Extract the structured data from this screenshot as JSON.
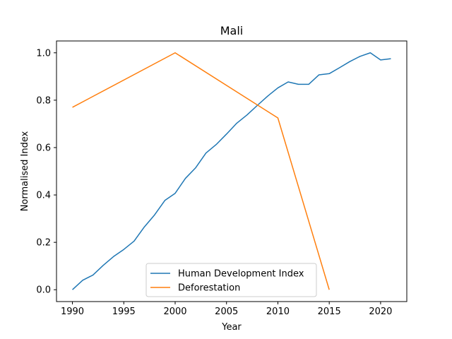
{
  "chart_data": {
    "type": "line",
    "title": "Mali",
    "xlabel": "Year",
    "ylabel": "Normalised Index",
    "xlim": [
      1988.45,
      2022.55
    ],
    "ylim": [
      -0.05,
      1.05
    ],
    "xticks": [
      1990,
      1995,
      2000,
      2005,
      2010,
      2015,
      2020
    ],
    "yticks": [
      0.0,
      0.2,
      0.4,
      0.6,
      0.8,
      1.0
    ],
    "xtick_labels": [
      "1990",
      "1995",
      "2000",
      "2005",
      "2010",
      "2015",
      "2020"
    ],
    "ytick_labels": [
      "0.0",
      "0.2",
      "0.4",
      "0.6",
      "0.8",
      "1.0"
    ],
    "grid": false,
    "legend_position": "bottom-center",
    "series": [
      {
        "name": "Human Development Index",
        "color": "#1f77b4",
        "x": [
          1990,
          1991,
          1992,
          1993,
          1994,
          1995,
          1996,
          1997,
          1998,
          1999,
          2000,
          2001,
          2002,
          2003,
          2004,
          2005,
          2006,
          2007,
          2008,
          2009,
          2010,
          2011,
          2012,
          2013,
          2014,
          2015,
          2016,
          2017,
          2018,
          2019,
          2020,
          2021
        ],
        "y": [
          0.0,
          0.04,
          0.062,
          0.103,
          0.14,
          0.17,
          0.205,
          0.265,
          0.316,
          0.377,
          0.407,
          0.47,
          0.515,
          0.577,
          0.613,
          0.657,
          0.703,
          0.738,
          0.778,
          0.817,
          0.852,
          0.877,
          0.867,
          0.867,
          0.907,
          0.912,
          0.937,
          0.963,
          0.985,
          1.0,
          0.97,
          0.975
        ]
      },
      {
        "name": "Deforestation",
        "color": "#ff7f0e",
        "x": [
          1990,
          2000,
          2010,
          2015
        ],
        "y": [
          0.77,
          1.0,
          0.725,
          0.0
        ]
      }
    ]
  }
}
